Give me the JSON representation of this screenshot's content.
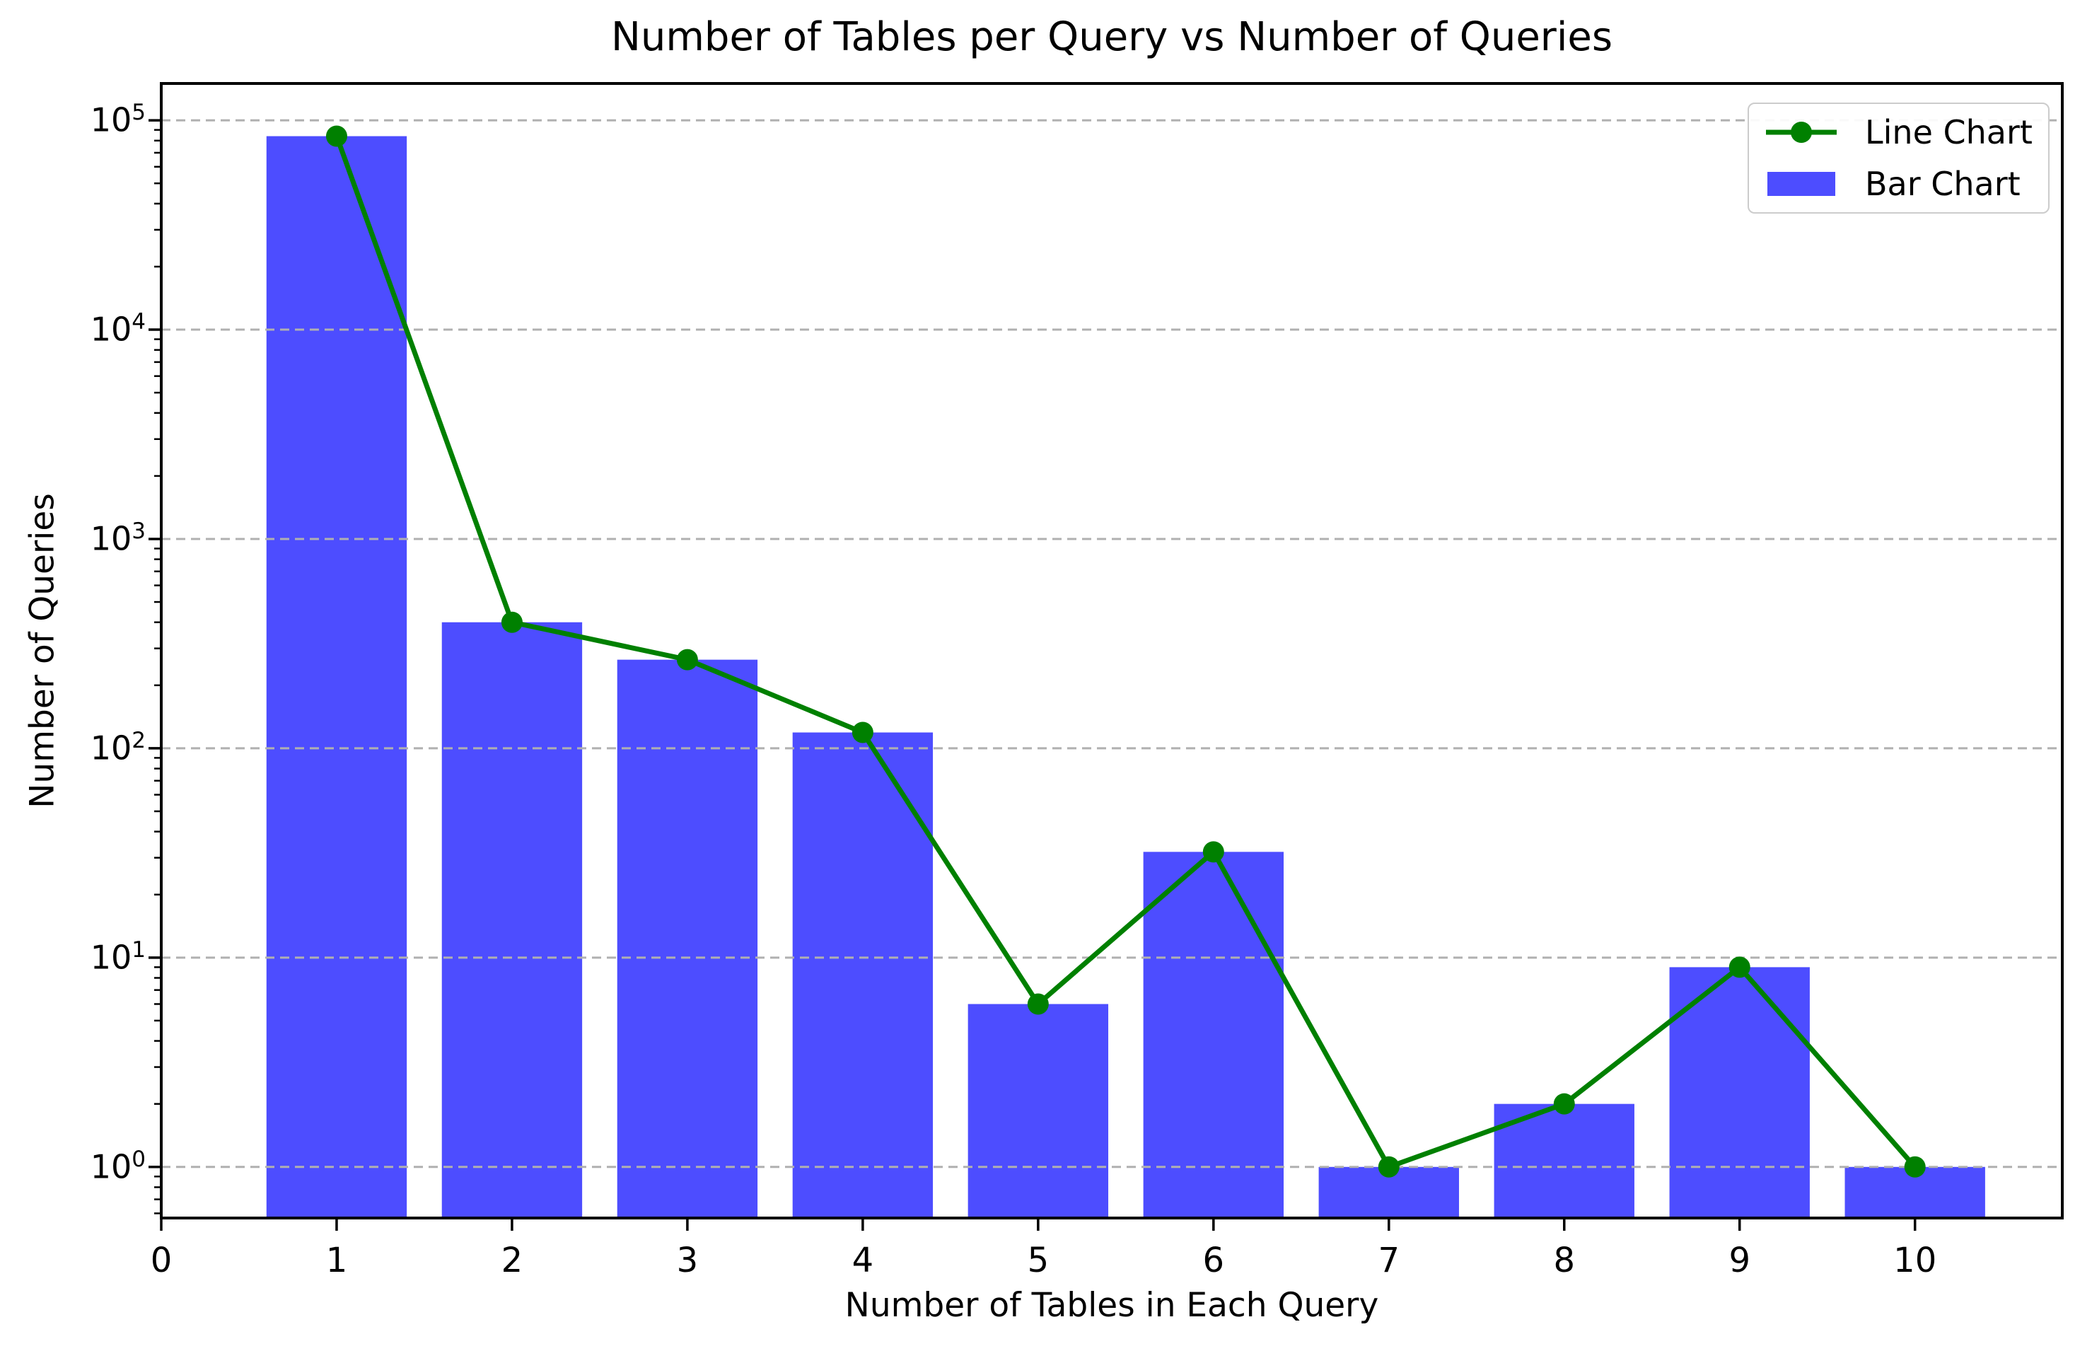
{
  "chart_data": {
    "type": "bar",
    "title": "Number of Tables per Query vs Number of Queries",
    "xlabel": "Number of Tables in Each Query",
    "ylabel": "Number of Queries",
    "categories": [
      1,
      2,
      3,
      4,
      5,
      6,
      7,
      8,
      9,
      10
    ],
    "series": [
      {
        "name": "Line Chart",
        "type": "line",
        "color": "#008000",
        "values": [
          84000,
          400,
          265,
          119,
          6,
          32,
          1,
          2,
          9,
          1
        ]
      },
      {
        "name": "Bar Chart",
        "type": "bar",
        "color": "#4d4dff",
        "values": [
          84000,
          400,
          265,
          119,
          6,
          32,
          1,
          2,
          9,
          1
        ]
      }
    ],
    "bar_width": 0.8,
    "yscale": "log",
    "ylim": [
      0.57,
      150000
    ],
    "xlim": [
      0,
      10.84
    ],
    "x_tick_labels": [
      "0",
      "1",
      "2",
      "3",
      "4",
      "5",
      "6",
      "7",
      "8",
      "9",
      "10"
    ],
    "y_tick_base": "10",
    "y_tick_exponents": [
      0,
      1,
      2,
      3,
      4,
      5
    ],
    "grid": {
      "axis": "y",
      "style": "dashed",
      "color": "#b0b0b0"
    },
    "legend_position": "upper right",
    "axis_color": "#000000"
  },
  "legend": {
    "items": [
      {
        "label": "Line Chart"
      },
      {
        "label": "Bar Chart"
      }
    ]
  }
}
